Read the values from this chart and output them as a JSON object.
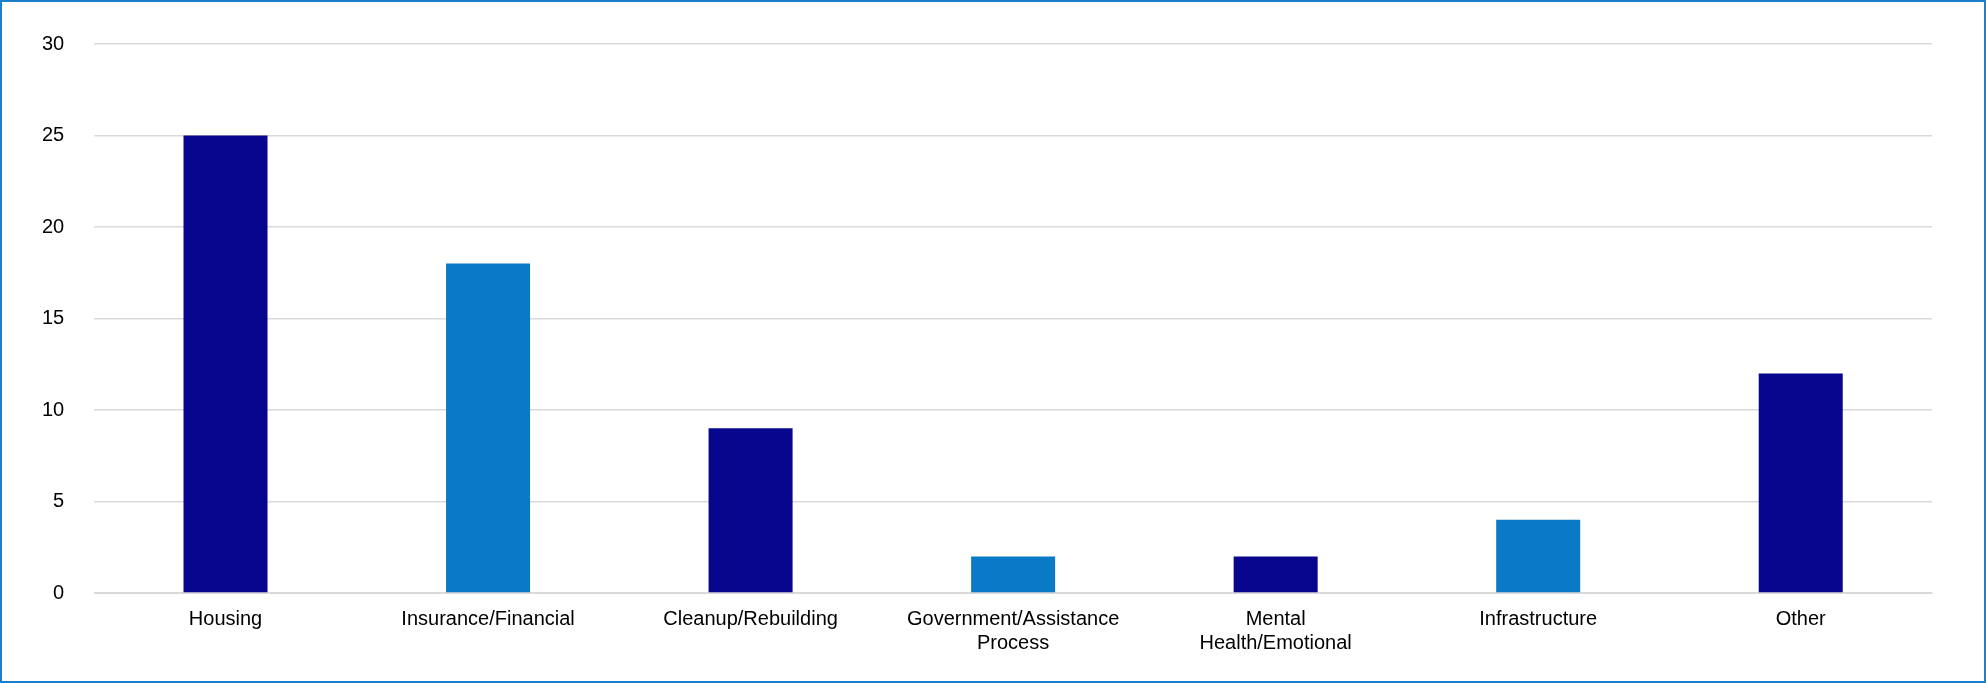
{
  "chart_data": {
    "type": "bar",
    "categories": [
      "Housing",
      "Insurance/Financial",
      "Cleanup/Rebuilding",
      "Government/Assistance Process",
      "Mental Health/Emotional",
      "Infrastructure",
      "Other"
    ],
    "values": [
      25,
      18,
      9,
      2,
      2,
      4,
      12
    ],
    "colors": [
      "#07068c",
      "#0a79c6",
      "#07068c",
      "#0a79c6",
      "#07068c",
      "#0a79c6",
      "#07068c"
    ],
    "ylim": [
      0,
      30
    ],
    "yticks": [
      0,
      5,
      10,
      15,
      20,
      25,
      30
    ],
    "grid": "y"
  }
}
